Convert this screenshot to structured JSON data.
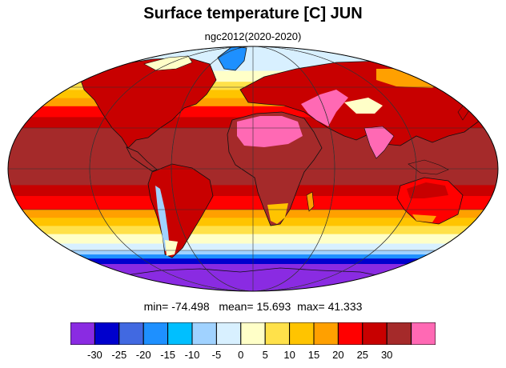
{
  "title": "Surface temperature [C] JUN",
  "subtitle": "ngc2012(2020-2020)",
  "stats": {
    "min_label": "min=",
    "min": "-74.498",
    "mean_label": "mean=",
    "mean": "15.693",
    "max_label": "max=",
    "max": "41.333"
  },
  "colorbar": {
    "colors": [
      "#8a2be2",
      "#0000cd",
      "#4169e1",
      "#1e90ff",
      "#00bfff",
      "#a0d2ff",
      "#d8f0ff",
      "#ffffc8",
      "#ffe14a",
      "#ffc400",
      "#ffa000",
      "#ff0000",
      "#c80000",
      "#a52a2a",
      "#ff69b4"
    ],
    "ticks": [
      "-30",
      "-25",
      "-20",
      "-15",
      "-10",
      "-5",
      "0",
      "5",
      "10",
      "15",
      "20",
      "25",
      "30"
    ]
  },
  "map": {
    "projection": "Mollweide",
    "bands": [
      {
        "lat_from": 90,
        "lat_to": 72,
        "color": "#d8f0ff"
      },
      {
        "lat_from": 72,
        "lat_to": 64,
        "color": "#ffffc8"
      },
      {
        "lat_from": 64,
        "lat_to": 58,
        "color": "#ffe14a"
      },
      {
        "lat_from": 58,
        "lat_to": 52,
        "color": "#ffc400"
      },
      {
        "lat_from": 52,
        "lat_to": 46,
        "color": "#ffa000"
      },
      {
        "lat_from": 46,
        "lat_to": 38,
        "color": "#ff0000"
      },
      {
        "lat_from": 38,
        "lat_to": 30,
        "color": "#c80000"
      },
      {
        "lat_from": 30,
        "lat_to": -12,
        "color": "#a52a2a"
      },
      {
        "lat_from": -12,
        "lat_to": -20,
        "color": "#c80000"
      },
      {
        "lat_from": -20,
        "lat_to": -30,
        "color": "#ff0000"
      },
      {
        "lat_from": -30,
        "lat_to": -36,
        "color": "#ffa000"
      },
      {
        "lat_from": -36,
        "lat_to": -42,
        "color": "#ffc400"
      },
      {
        "lat_from": -42,
        "lat_to": -48,
        "color": "#ffe14a"
      },
      {
        "lat_from": -48,
        "lat_to": -55,
        "color": "#ffffc8"
      },
      {
        "lat_from": -55,
        "lat_to": -60,
        "color": "#d8f0ff"
      },
      {
        "lat_from": -60,
        "lat_to": -63,
        "color": "#a0d2ff"
      },
      {
        "lat_from": -63,
        "lat_to": -66,
        "color": "#1e90ff"
      },
      {
        "lat_from": -66,
        "lat_to": -70,
        "color": "#0000cd"
      },
      {
        "lat_from": -70,
        "lat_to": -90,
        "color": "#8a2be2"
      }
    ],
    "graticule_lats": [
      -60,
      -30,
      0,
      30,
      60
    ],
    "graticule_lons": [
      -180,
      -120,
      -60,
      0,
      60,
      120,
      180
    ]
  }
}
